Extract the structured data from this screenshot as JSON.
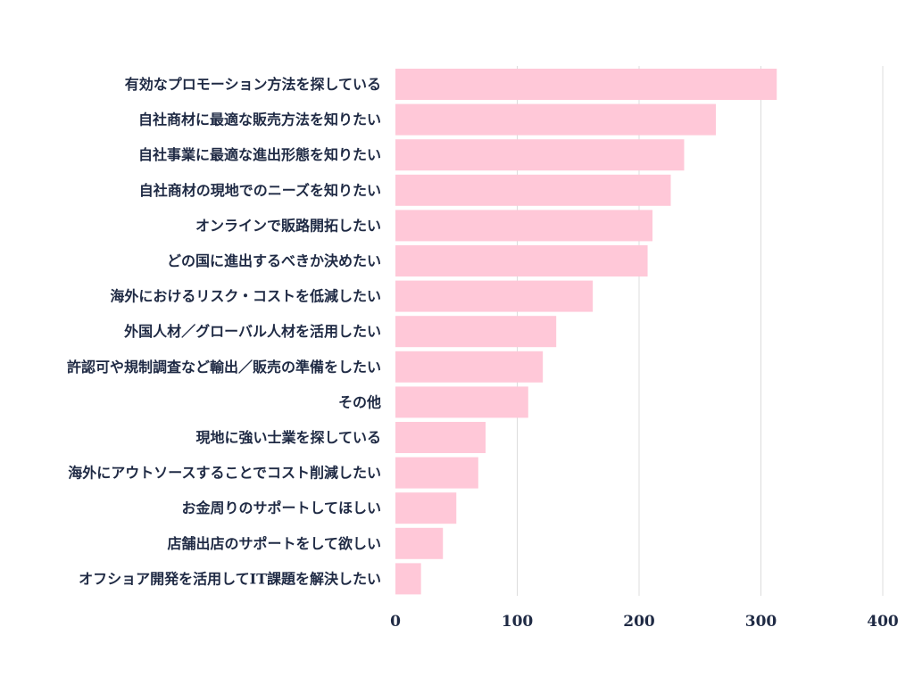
{
  "chart_data": {
    "type": "bar",
    "orientation": "horizontal",
    "categories": [
      "有効なプロモーション方法を探している",
      "自社商材に最適な販売方法を知りたい",
      "自社事業に最適な進出形態を知りたい",
      "自社商材の現地でのニーズを知りたい",
      "オンラインで販路開拓したい",
      "どの国に進出するべきか決めたい",
      "海外におけるリスク・コストを低減したい",
      "外国人材／グローバル人材を活用したい",
      "許認可や規制調査など輸出／販売の準備をしたい",
      "その他",
      "現地に強い士業を探している",
      "海外にアウトソースすることでコスト削減したい",
      "お金周りのサポートしてほしい",
      "店舗出店のサポートをして欲しい",
      "オフショア開発を活用してIT課題を解決したい"
    ],
    "values": [
      313,
      263,
      237,
      226,
      211,
      207,
      162,
      132,
      121,
      109,
      74,
      68,
      50,
      39,
      21
    ],
    "xlim": [
      0,
      400
    ],
    "xticks": [
      0,
      100,
      200,
      300,
      400
    ],
    "tick_labels": [
      "0",
      "100",
      "200",
      "300",
      "400"
    ],
    "grid": true,
    "bar_color": "#ffc8d8",
    "title": "",
    "xlabel": "",
    "ylabel": ""
  }
}
